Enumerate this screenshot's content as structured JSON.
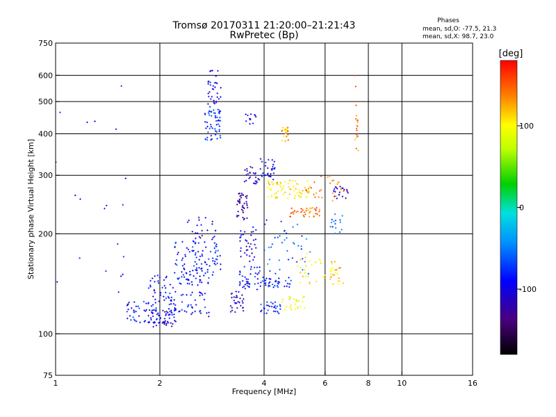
{
  "chart_data": {
    "type": "scatter",
    "title": "Tromsø 20170311 21:20:00–21:21:43",
    "subtitle": "RwPretec (Bp)",
    "phases": {
      "heading": "Phases",
      "line_o": "mean, sd,O: -77.5, 21.3",
      "line_x": "mean, sd,X:  98.7, 23.0"
    },
    "xlabel": "Frequency [MHz]",
    "ylabel": "Stationary phase Virtual Height [km]",
    "x_scale": "log",
    "y_scale": "log",
    "xlim": [
      1,
      16
    ],
    "ylim": [
      75,
      750
    ],
    "x_ticks": [
      1,
      2,
      4,
      6,
      8,
      10,
      16
    ],
    "x_tick_labels": [
      "1",
      "2",
      "4",
      "6",
      "8",
      "10",
      "16"
    ],
    "x_gridlines": [
      2,
      4,
      6,
      8,
      10
    ],
    "y_ticks": [
      75,
      100,
      200,
      300,
      400,
      500,
      600,
      750
    ],
    "y_tick_labels": [
      "75",
      "100",
      "200",
      "300",
      "400",
      "500",
      "600",
      "750"
    ],
    "y_gridlines": [
      100,
      200,
      300,
      400,
      500,
      600
    ],
    "grid": true,
    "colorbar": {
      "label": "[deg]",
      "range": [
        -180,
        180
      ],
      "ticks": [
        100,
        0,
        -100
      ],
      "tick_labels": [
        "100",
        "0",
        "-100"
      ],
      "colormap": "rainbow"
    },
    "clusters": [
      {
        "phase": -100,
        "f": [
          1.85,
          2.25
        ],
        "h": [
          105,
          118
        ],
        "n": 55
      },
      {
        "phase": -85,
        "f": [
          1.6,
          2.0
        ],
        "h": [
          108,
          125
        ],
        "n": 45
      },
      {
        "phase": -90,
        "f": [
          2.1,
          2.8
        ],
        "h": [
          112,
          135
        ],
        "n": 55
      },
      {
        "phase": -95,
        "f": [
          1.8,
          2.2
        ],
        "h": [
          125,
          150
        ],
        "n": 35
      },
      {
        "phase": -85,
        "f": [
          2.2,
          3.0
        ],
        "h": [
          140,
          190
        ],
        "n": 120
      },
      {
        "phase": -100,
        "f": [
          2.4,
          2.9
        ],
        "h": [
          185,
          225
        ],
        "n": 25
      },
      {
        "phase": -80,
        "f": [
          2.7,
          3.0
        ],
        "h": [
          380,
          480
        ],
        "n": 55
      },
      {
        "phase": -100,
        "f": [
          2.75,
          3.0
        ],
        "h": [
          480,
          620
        ],
        "n": 35
      },
      {
        "phase": -110,
        "f": [
          3.2,
          3.5
        ],
        "h": [
          115,
          135
        ],
        "n": 30
      },
      {
        "phase": -130,
        "f": [
          3.3,
          3.6
        ],
        "h": [
          220,
          265
        ],
        "n": 40
      },
      {
        "phase": -110,
        "f": [
          3.4,
          3.8
        ],
        "h": [
          165,
          210
        ],
        "n": 35
      },
      {
        "phase": -105,
        "f": [
          3.5,
          3.8
        ],
        "h": [
          420,
          470
        ],
        "n": 12
      },
      {
        "phase": -105,
        "f": [
          3.5,
          3.9
        ],
        "h": [
          280,
          320
        ],
        "n": 25
      },
      {
        "phase": -90,
        "f": [
          3.4,
          3.9
        ],
        "h": [
          135,
          160
        ],
        "n": 40
      },
      {
        "phase": -80,
        "f": [
          3.9,
          4.5
        ],
        "h": [
          115,
          125
        ],
        "n": 30
      },
      {
        "phase": -85,
        "f": [
          3.9,
          4.8
        ],
        "h": [
          138,
          148
        ],
        "n": 40
      },
      {
        "phase": -95,
        "f": [
          3.9,
          4.3
        ],
        "h": [
          290,
          340
        ],
        "n": 30
      },
      {
        "phase": 110,
        "f": [
          4.1,
          5.5
        ],
        "h": [
          255,
          290
        ],
        "n": 70
      },
      {
        "phase": 120,
        "f": [
          4.5,
          4.7
        ],
        "h": [
          380,
          420
        ],
        "n": 25
      },
      {
        "phase": 145,
        "f": [
          4.7,
          5.8
        ],
        "h": [
          225,
          240
        ],
        "n": 40
      },
      {
        "phase": 90,
        "f": [
          4.5,
          5.3
        ],
        "h": [
          118,
          130
        ],
        "n": 25
      },
      {
        "phase": -60,
        "f": [
          4.0,
          5.5
        ],
        "h": [
          150,
          220
        ],
        "n": 40
      },
      {
        "phase": 100,
        "f": [
          5.0,
          6.0
        ],
        "h": [
          140,
          175
        ],
        "n": 25
      },
      {
        "phase": 120,
        "f": [
          6.2,
          6.8
        ],
        "h": [
          140,
          165
        ],
        "n": 25
      },
      {
        "phase": -110,
        "f": [
          6.3,
          7.0
        ],
        "h": [
          255,
          280
        ],
        "n": 20
      },
      {
        "phase": -60,
        "f": [
          6.2,
          6.8
        ],
        "h": [
          200,
          230
        ],
        "n": 15
      },
      {
        "phase": 140,
        "f": [
          5.2,
          6.8
        ],
        "h": [
          250,
          300
        ],
        "n": 30
      },
      {
        "phase": 140,
        "f": [
          7.3,
          7.5
        ],
        "h": [
          350,
          600
        ],
        "n": 18
      },
      {
        "phase": -90,
        "f": [
          1.0,
          1.6
        ],
        "h": [
          130,
          600
        ],
        "n": 20
      }
    ]
  }
}
